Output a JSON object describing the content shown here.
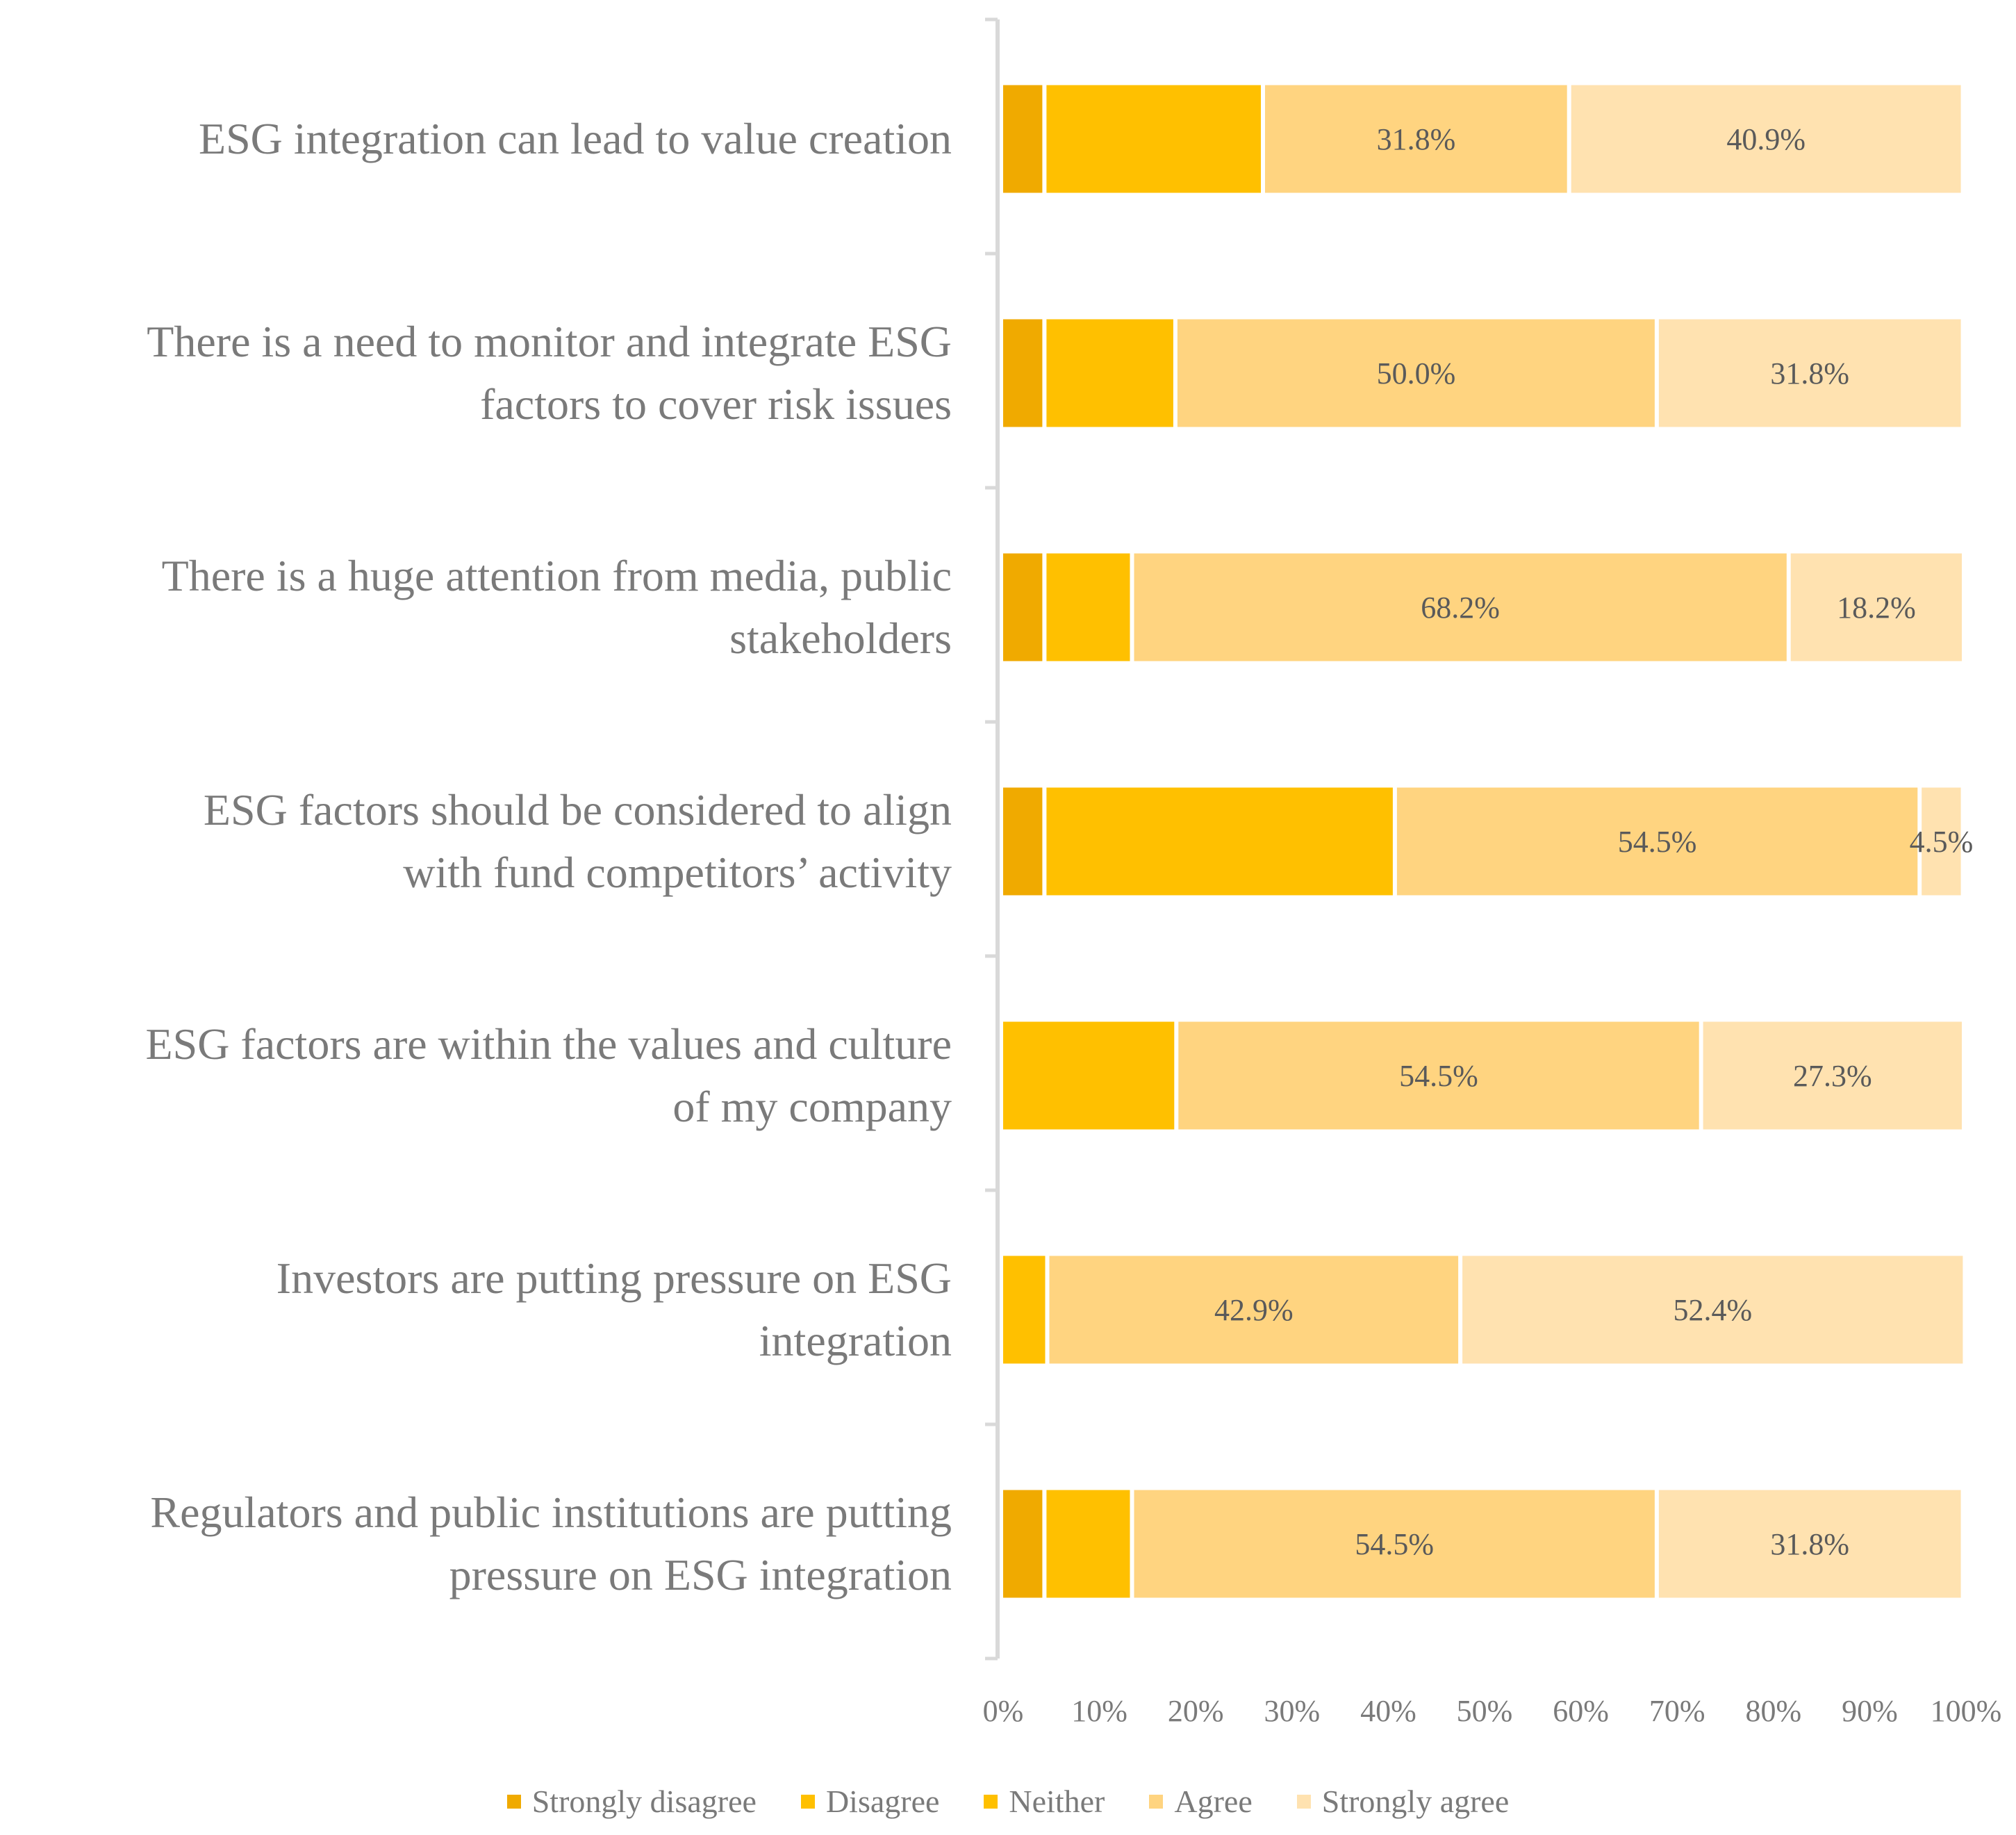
{
  "chart_data": {
    "type": "bar",
    "orientation": "horizontal",
    "stacked": true,
    "categories": [
      "ESG integration can lead to value creation",
      "There is a need to monitor and integrate ESG factors to cover risk issues",
      "There is a huge attention from media, public stakeholders",
      "ESG factors should be considered to align with fund competitors’ activity",
      "ESG factors are within the values and culture of my company",
      "Investors are putting pressure on ESG integration",
      "Regulators and public institutions are putting pressure on ESG integration"
    ],
    "category_lines": [
      [
        "ESG integration can lead to value creation"
      ],
      [
        "There is a need to monitor and integrate ESG",
        "factors to cover risk issues"
      ],
      [
        "There is a huge attention from media, public",
        "stakeholders"
      ],
      [
        "ESG factors should be considered to align",
        "with fund competitors’ activity"
      ],
      [
        "ESG factors are within the values and culture",
        "of my company"
      ],
      [
        "Investors are putting pressure on ESG",
        "integration"
      ],
      [
        "Regulators and public institutions are putting",
        "pressure on ESG integration"
      ]
    ],
    "series": [
      {
        "name": "Strongly disagree",
        "color": "#F0AA00",
        "values": [
          4.5,
          4.5,
          4.5,
          4.5,
          0,
          0,
          4.5
        ],
        "labels": [
          "",
          "",
          "",
          "",
          "",
          "",
          ""
        ]
      },
      {
        "name": "Disagree",
        "color": "#FFC000",
        "values": [
          0,
          0,
          0,
          0,
          0,
          0,
          0
        ],
        "labels": [
          "",
          "",
          "",
          "",
          "",
          "",
          ""
        ]
      },
      {
        "name": "Neither",
        "color": "#FFC000",
        "values": [
          22.7,
          13.6,
          9.1,
          36.4,
          18.2,
          4.8,
          9.1
        ],
        "labels": [
          "",
          "",
          "",
          "",
          "",
          "",
          ""
        ]
      },
      {
        "name": "Agree",
        "color": "#FFD480",
        "values": [
          31.8,
          50.0,
          68.2,
          54.5,
          54.5,
          42.9,
          54.5
        ],
        "labels": [
          "31.8%",
          "50.0%",
          "68.2%",
          "54.5%",
          "54.5%",
          "42.9%",
          "54.5%"
        ]
      },
      {
        "name": "Strongly agree",
        "color": "#FFE2B0",
        "values": [
          40.9,
          31.8,
          18.2,
          4.5,
          27.3,
          52.4,
          31.8
        ],
        "labels": [
          "40.9%",
          "31.8%",
          "18.2%",
          "4.5%",
          "27.3%",
          "52.4%",
          "31.8%"
        ]
      }
    ],
    "x_ticks": [
      "0%",
      "10%",
      "20%",
      "30%",
      "40%",
      "50%",
      "60%",
      "70%",
      "80%",
      "90%",
      "100%"
    ],
    "xlim": [
      0,
      100
    ],
    "title": "",
    "xlabel": "",
    "ylabel": "",
    "grid": false,
    "legend_position": "bottom"
  }
}
